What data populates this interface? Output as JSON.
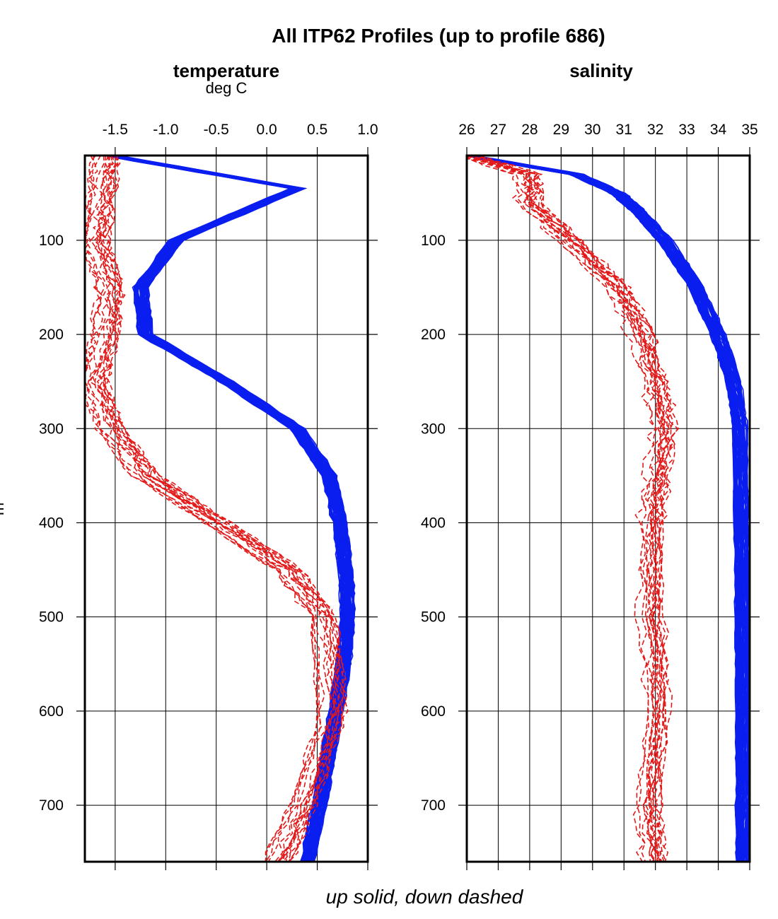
{
  "chart_data": {
    "title": "All ITP62 Profiles (up to profile 686)",
    "footer": "up solid, down dashed",
    "ylabel": "m",
    "ylim": [
      760,
      10
    ],
    "yticks": [
      100,
      200,
      300,
      400,
      500,
      600,
      700
    ],
    "panels": [
      {
        "type": "line",
        "title": "temperature",
        "unit": "deg C",
        "xlim": [
          -1.8,
          1.0
        ],
        "xticks": [
          -1.5,
          -1.0,
          -0.5,
          0.0,
          0.5,
          1.0
        ],
        "xtick_labels": [
          "-1.5",
          "-1.0",
          "-0.5",
          "0.0",
          "0.5",
          "1.0"
        ],
        "series": [
          {
            "style": "solid",
            "color": "#0a1ef0",
            "depth": [
              10,
              45,
              100,
              150,
              200,
              250,
              300,
              350,
              400,
              450,
              500,
              550,
              600,
              650,
              700,
              760
            ],
            "values": [
              -1.55,
              0.3,
              -0.9,
              -1.25,
              -1.2,
              -0.4,
              0.3,
              0.62,
              0.72,
              0.78,
              0.8,
              0.76,
              0.68,
              0.6,
              0.52,
              0.4
            ]
          },
          {
            "style": "dashed",
            "color": "#e41a1a",
            "depth": [
              10,
              60,
              100,
              150,
              200,
              250,
              300,
              350,
              400,
              450,
              500,
              600,
              700,
              760
            ],
            "values": [
              -1.6,
              -1.65,
              -1.7,
              -1.55,
              -1.6,
              -1.72,
              -1.55,
              -1.2,
              -0.5,
              0.2,
              0.55,
              0.65,
              0.35,
              0.1
            ]
          }
        ]
      },
      {
        "type": "line",
        "title": "salinity",
        "unit": "",
        "xlim": [
          26,
          35
        ],
        "xticks": [
          26,
          27,
          28,
          29,
          30,
          31,
          32,
          33,
          34,
          35
        ],
        "xtick_labels": [
          "26",
          "27",
          "28",
          "29",
          "30",
          "31",
          "32",
          "33",
          "34",
          "35"
        ],
        "series": [
          {
            "style": "solid",
            "color": "#0a1ef0",
            "depth": [
              10,
              30,
              50,
              70,
              100,
              150,
              200,
              250,
              300,
              400,
              500,
              600,
              700,
              760
            ],
            "values": [
              26.0,
              29.5,
              30.8,
              31.5,
              32.3,
              33.3,
              34.0,
              34.5,
              34.7,
              34.75,
              34.78,
              34.8,
              34.8,
              34.8
            ]
          },
          {
            "style": "dashed",
            "color": "#e41a1a",
            "depth": [
              10,
              30,
              60,
              100,
              150,
              200,
              250,
              300,
              350,
              400,
              500,
              600,
              700,
              760
            ],
            "values": [
              26.0,
              28.0,
              28.0,
              29.3,
              30.8,
              31.6,
              32.0,
              32.3,
              32.1,
              31.9,
              31.9,
              32.1,
              31.8,
              32.0
            ]
          }
        ]
      }
    ]
  }
}
